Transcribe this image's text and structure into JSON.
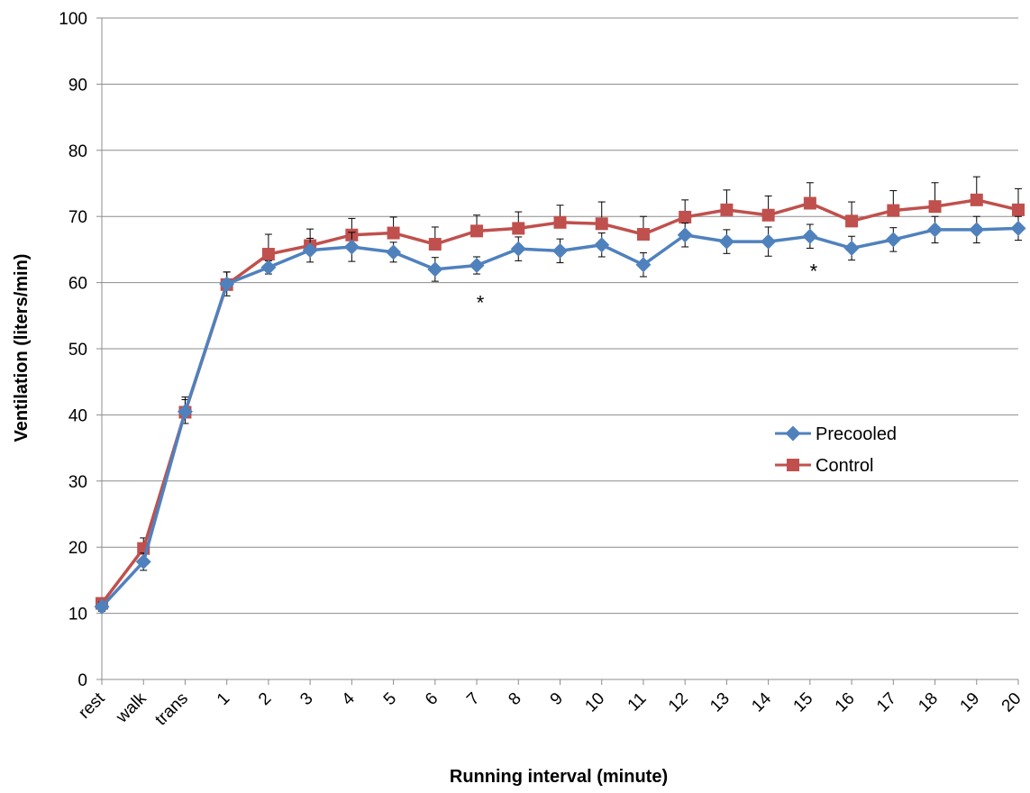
{
  "chart_data": {
    "type": "line",
    "xlabel": "Running interval (minute)",
    "ylabel": "Ventilation (liters/min)",
    "ylim": [
      0,
      100
    ],
    "yticks": [
      0,
      10,
      20,
      30,
      40,
      50,
      60,
      70,
      80,
      90,
      100
    ],
    "grid": "horizontal",
    "legend_position": "right",
    "categories": [
      "rest",
      "walk",
      "trans",
      "1",
      "2",
      "3",
      "4",
      "5",
      "6",
      "7",
      "8",
      "9",
      "10",
      "11",
      "12",
      "13",
      "14",
      "15",
      "16",
      "17",
      "18",
      "19",
      "20"
    ],
    "series": [
      {
        "name": "Precooled",
        "color": "#4F81BD",
        "marker": "diamond",
        "values": [
          11.0,
          17.8,
          40.5,
          59.8,
          62.3,
          64.9,
          65.4,
          64.6,
          62.0,
          62.6,
          65.1,
          64.8,
          65.7,
          62.7,
          67.2,
          66.2,
          66.2,
          67.0,
          65.2,
          66.5,
          68.0,
          68.0,
          68.2
        ],
        "error": [
          0.7,
          1.3,
          1.8,
          1.8,
          1.0,
          1.8,
          2.2,
          1.5,
          1.8,
          1.3,
          1.8,
          1.8,
          1.8,
          1.8,
          1.8,
          1.8,
          2.2,
          1.8,
          1.8,
          1.8,
          2.0,
          2.0,
          1.8
        ]
      },
      {
        "name": "Control",
        "color": "#C0504D",
        "marker": "square",
        "values": [
          11.5,
          19.8,
          40.4,
          59.7,
          64.3,
          65.6,
          67.2,
          67.5,
          65.8,
          67.8,
          68.2,
          69.1,
          68.9,
          67.3,
          69.9,
          71.0,
          70.2,
          72.0,
          69.3,
          70.9,
          71.5,
          72.5,
          71.0
        ],
        "error": [
          0.6,
          1.6,
          2.3,
          1.9,
          3.0,
          2.5,
          2.5,
          2.4,
          2.6,
          2.4,
          2.5,
          2.6,
          3.3,
          2.7,
          2.6,
          3.0,
          2.9,
          3.1,
          2.9,
          3.0,
          3.6,
          3.5,
          3.2
        ]
      }
    ],
    "annotations": [
      {
        "text": "*",
        "category": "7",
        "y": 57.0
      },
      {
        "text": "*",
        "category": "15",
        "y": 61.8
      }
    ]
  }
}
